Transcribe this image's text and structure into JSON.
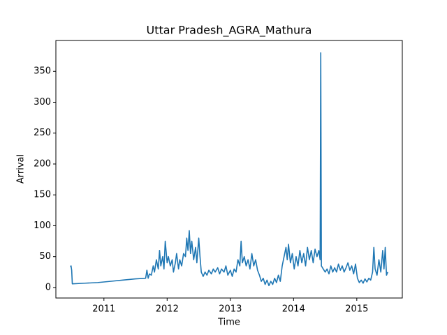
{
  "chart_data": {
    "type": "line",
    "title": "Uttar Pradesh_AGRA_Mathura",
    "xlabel": "Time",
    "ylabel": "Arrival",
    "xlim": [
      2010.24,
      2015.72
    ],
    "ylim": [
      -17,
      400
    ],
    "xticks": [
      2011,
      2012,
      2013,
      2014,
      2015
    ],
    "yticks": [
      0,
      50,
      100,
      150,
      200,
      250,
      300,
      350
    ],
    "series": [
      {
        "name": "Arrival",
        "color": "#1f77b4",
        "x": [
          2010.47,
          2010.48,
          2010.49,
          2010.5,
          2010.7,
          2010.9,
          2011.1,
          2011.3,
          2011.5,
          2011.66,
          2011.68,
          2011.7,
          2011.72,
          2011.75,
          2011.78,
          2011.8,
          2011.83,
          2011.86,
          2011.88,
          2011.9,
          2011.93,
          2011.95,
          2011.97,
          2012.0,
          2012.02,
          2012.05,
          2012.08,
          2012.1,
          2012.13,
          2012.15,
          2012.18,
          2012.2,
          2012.23,
          2012.26,
          2012.29,
          2012.31,
          2012.33,
          2012.35,
          2012.37,
          2012.39,
          2012.42,
          2012.45,
          2012.47,
          2012.5,
          2012.52,
          2012.54,
          2012.57,
          2012.6,
          2012.63,
          2012.66,
          2012.7,
          2012.73,
          2012.76,
          2012.8,
          2012.83,
          2012.86,
          2012.9,
          2012.93,
          2012.96,
          2013.0,
          2013.03,
          2013.06,
          2013.09,
          2013.12,
          2013.15,
          2013.17,
          2013.19,
          2013.22,
          2013.25,
          2013.28,
          2013.31,
          2013.34,
          2013.37,
          2013.4,
          2013.43,
          2013.46,
          2013.49,
          2013.52,
          2013.55,
          2013.58,
          2013.61,
          2013.64,
          2013.67,
          2013.7,
          2013.73,
          2013.76,
          2013.79,
          2013.82,
          2013.85,
          2013.88,
          2013.9,
          2013.92,
          2013.95,
          2013.98,
          2014.01,
          2014.04,
          2014.07,
          2014.1,
          2014.13,
          2014.16,
          2014.19,
          2014.22,
          2014.25,
          2014.28,
          2014.31,
          2014.34,
          2014.37,
          2014.4,
          2014.42,
          2014.43,
          2014.44,
          2014.47,
          2014.5,
          2014.53,
          2014.56,
          2014.59,
          2014.62,
          2014.65,
          2014.68,
          2014.71,
          2014.74,
          2014.77,
          2014.8,
          2014.83,
          2014.86,
          2014.89,
          2014.92,
          2014.95,
          2014.98,
          2015.01,
          2015.04,
          2015.07,
          2015.1,
          2015.13,
          2015.16,
          2015.19,
          2015.22,
          2015.25,
          2015.27,
          2015.29,
          2015.32,
          2015.35,
          2015.38,
          2015.41,
          2015.43,
          2015.45,
          2015.47,
          2015.49
        ],
        "values": [
          33,
          35,
          28,
          6,
          7,
          8,
          10,
          12,
          14,
          15,
          28,
          15,
          22,
          20,
          35,
          25,
          45,
          30,
          60,
          35,
          50,
          30,
          75,
          40,
          50,
          35,
          45,
          25,
          40,
          55,
          30,
          45,
          35,
          55,
          50,
          80,
          60,
          92,
          55,
          75,
          45,
          65,
          40,
          80,
          50,
          25,
          18,
          25,
          20,
          28,
          22,
          30,
          25,
          32,
          22,
          30,
          25,
          35,
          20,
          28,
          18,
          30,
          25,
          45,
          35,
          75,
          40,
          50,
          35,
          45,
          30,
          55,
          35,
          45,
          28,
          20,
          10,
          15,
          5,
          12,
          3,
          10,
          5,
          15,
          8,
          20,
          10,
          35,
          50,
          65,
          45,
          70,
          40,
          55,
          30,
          50,
          35,
          60,
          40,
          55,
          35,
          65,
          45,
          60,
          40,
          62,
          50,
          60,
          45,
          380,
          35,
          30,
          25,
          30,
          22,
          35,
          25,
          32,
          25,
          38,
          28,
          35,
          25,
          32,
          40,
          28,
          35,
          22,
          38,
          15,
          8,
          12,
          7,
          14,
          9,
          15,
          12,
          25,
          65,
          30,
          20,
          45,
          25,
          60,
          30,
          65,
          20,
          25
        ]
      }
    ]
  }
}
